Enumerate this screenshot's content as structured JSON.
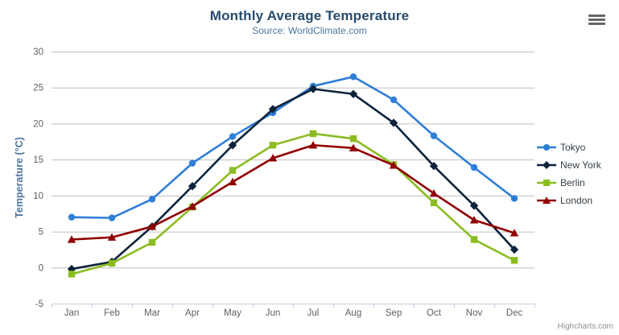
{
  "chart_data": {
    "type": "line",
    "title": "Monthly Average Temperature",
    "subtitle": "Source: WorldClimate.com",
    "categories": [
      "Jan",
      "Feb",
      "Mar",
      "Apr",
      "May",
      "Jun",
      "Jul",
      "Aug",
      "Sep",
      "Oct",
      "Nov",
      "Dec"
    ],
    "xlabel": "",
    "ylabel": "Temperature (°C)",
    "ylim": [
      -5,
      30
    ],
    "ytick_step": 5,
    "grid": "horizontal-only",
    "legend_position": "right",
    "series": [
      {
        "name": "Tokyo",
        "color": "#2f7ed8",
        "marker": "circle",
        "values": [
          7.0,
          6.9,
          9.5,
          14.5,
          18.2,
          21.5,
          25.2,
          26.5,
          23.3,
          18.3,
          13.9,
          9.6
        ]
      },
      {
        "name": "New York",
        "color": "#0d233a",
        "marker": "diamond",
        "values": [
          -0.2,
          0.8,
          5.7,
          11.3,
          17.0,
          22.0,
          24.8,
          24.1,
          20.1,
          14.1,
          8.6,
          2.5
        ]
      },
      {
        "name": "Berlin",
        "color": "#8bbc21",
        "marker": "square",
        "values": [
          -0.9,
          0.6,
          3.5,
          8.4,
          13.5,
          17.0,
          18.6,
          17.9,
          14.3,
          9.0,
          3.9,
          1.0
        ]
      },
      {
        "name": "London",
        "color": "#910000",
        "marker": "triangle",
        "values": [
          3.9,
          4.2,
          5.7,
          8.5,
          11.9,
          15.2,
          17.0,
          16.6,
          14.2,
          10.3,
          6.6,
          4.8
        ]
      }
    ]
  },
  "styles": {
    "title_color": "#274b6d",
    "subtitle_color": "#4d759e",
    "axis_title_color": "#4d759e",
    "axis_label_color": "#606060",
    "grid_color": "#c0c0c0",
    "axis_line_color": "#c0d0e0",
    "credit_color": "#909090"
  },
  "icons": {
    "export_menu": "hamburger-icon"
  },
  "credits": "Highcharts.com"
}
